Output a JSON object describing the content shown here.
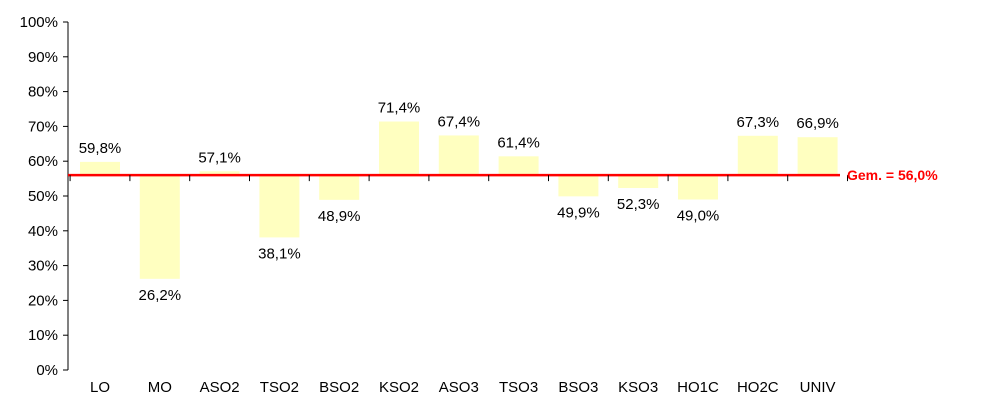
{
  "chart_data": {
    "type": "bar",
    "baseline": 56.0,
    "categories": [
      "LO",
      "MO",
      "ASO2",
      "TSO2",
      "BSO2",
      "KSO2",
      "ASO3",
      "TSO3",
      "BSO3",
      "KSO3",
      "HO1C",
      "HO2C",
      "UNIV"
    ],
    "values": [
      59.8,
      26.2,
      57.1,
      38.1,
      48.9,
      71.4,
      67.4,
      61.4,
      49.9,
      52.3,
      49.0,
      67.3,
      66.9
    ],
    "value_labels": [
      "59,8%",
      "26,2%",
      "57,1%",
      "38,1%",
      "48,9%",
      "71,4%",
      "67,4%",
      "61,4%",
      "49,9%",
      "52,3%",
      "49,0%",
      "67,3%",
      "66,9%"
    ],
    "ylim": [
      0,
      100
    ],
    "y_ticks": [
      0,
      10,
      20,
      30,
      40,
      50,
      60,
      70,
      80,
      90,
      100
    ],
    "y_tick_labels": [
      "0%",
      "10%",
      "20%",
      "30%",
      "40%",
      "50%",
      "60%",
      "70%",
      "80%",
      "90%",
      "100%"
    ],
    "average_label": "Gem. = 56,0%",
    "grid": false,
    "legend": "none",
    "colors": {
      "bar": "#ffffc0",
      "average_line": "#ff0000",
      "axis": "#000000"
    }
  }
}
